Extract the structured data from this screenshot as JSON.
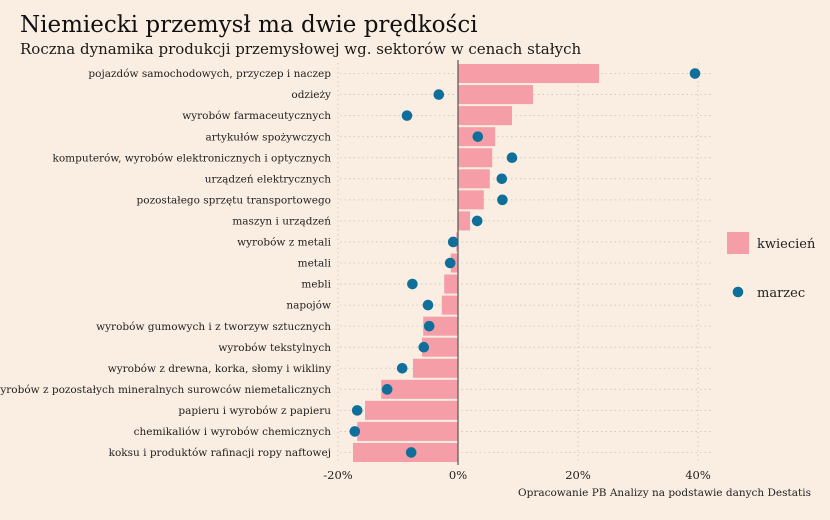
{
  "title": "Niemiecki przemysł ma dwie prędkości",
  "subtitle": "Roczna dynamika produkcji przemysłowej wg. sektorów w cenach stałych",
  "source": "Opracowanie PB Analizy na podstawie danych Destatis",
  "colors": {
    "bar": "#f59ea8",
    "dot": "#0f6f9a",
    "background": "#faeee2",
    "zero_line": "#555555"
  },
  "chart_data": {
    "type": "bar",
    "orientation": "horizontal",
    "categories": [
      "pojazdów samochodowych, przyczep i naczep",
      "odzieży",
      "wyrobów farmaceutycznych",
      "artykułów spożywczych",
      "komputerów, wyrobów elektronicznych i optycznych",
      "urządzeń elektrycznych",
      "pozostałego sprzętu transportowego",
      "maszyn i urządzeń",
      "wyrobów z metali",
      "metali",
      "mebli",
      "napojów",
      "wyrobów gumowych i z tworzyw sztucznych",
      "wyrobów tekstylnych",
      "wyrobów z drewna, korka, słomy i wikliny",
      "wyrobów z pozostałych mineralnych surowców niemetalicznych",
      "papieru i wyrobów z papieru",
      "chemikaliów i wyrobów chemicznych",
      "koksu i produktów rafinacji ropy naftowej"
    ],
    "series": [
      {
        "name": "kwiecień",
        "kind": "bar",
        "values": [
          23.5,
          12.5,
          9.0,
          6.2,
          5.7,
          5.3,
          4.3,
          2.0,
          -0.3,
          -1.2,
          -2.3,
          -2.7,
          -5.8,
          -6.0,
          -7.5,
          -12.8,
          -15.5,
          -16.8,
          -17.5
        ]
      },
      {
        "name": "marzec",
        "kind": "point",
        "values": [
          39.5,
          -3.2,
          -8.5,
          3.3,
          9.0,
          7.3,
          7.4,
          3.2,
          -0.8,
          -1.3,
          -7.6,
          -5.0,
          -4.8,
          -5.7,
          -9.3,
          -11.8,
          -16.8,
          -17.2,
          -7.8
        ]
      }
    ],
    "xlim": [
      -20,
      45
    ],
    "xticks": [
      "-20%",
      "0%",
      "20%",
      "40%"
    ],
    "xtick_values": [
      -20,
      0,
      20,
      40
    ],
    "grid": true,
    "legend_position": "right"
  }
}
